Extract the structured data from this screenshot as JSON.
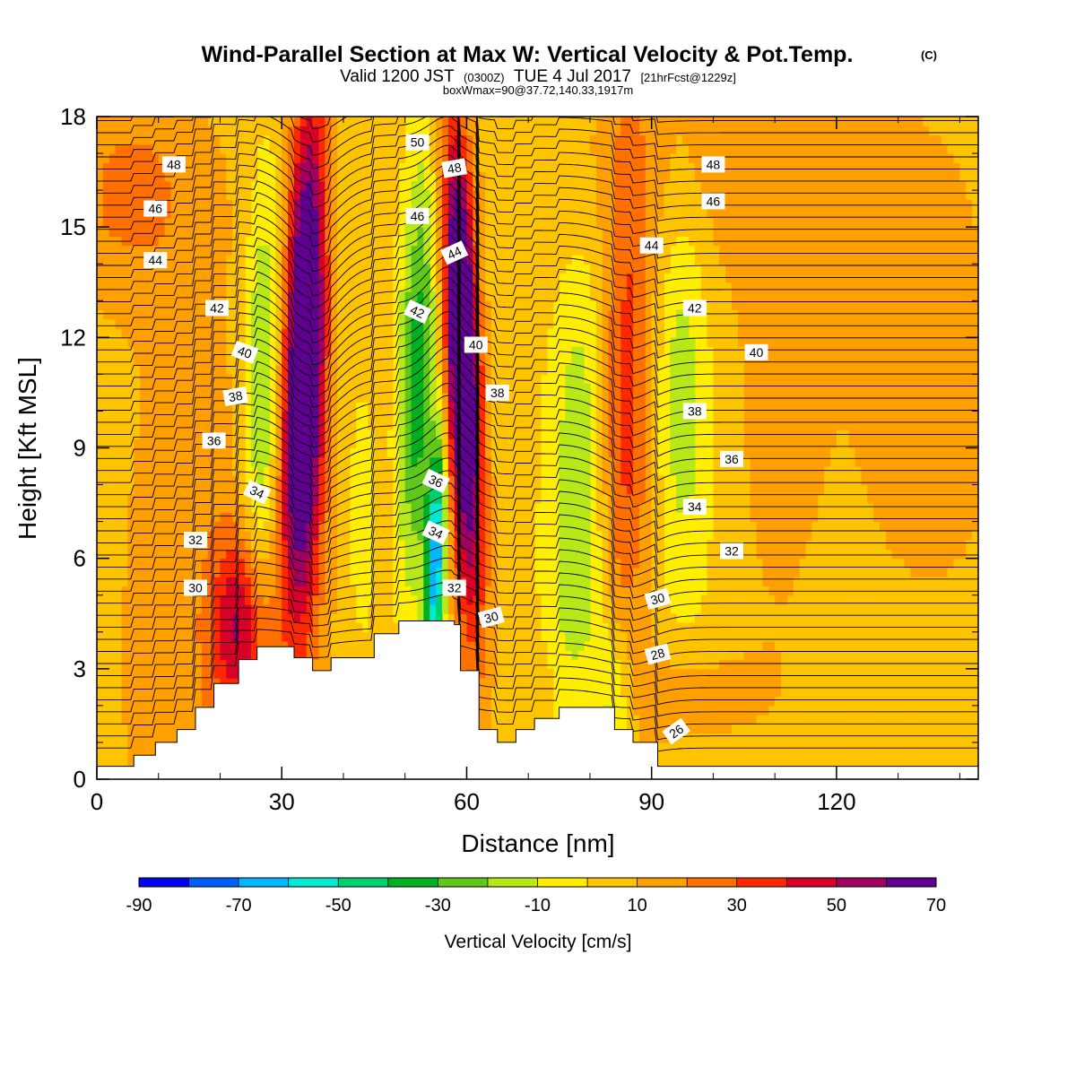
{
  "title": {
    "main": "Wind-Parallel Section at Max W: Vertical Velocity & Pot.Temp.",
    "copyright": "(C)",
    "valid_prefix": "Valid 1200 JST",
    "valid_z": "(0300Z)",
    "valid_date": "TUE 4 Jul 2017",
    "fcst": "[21hrFcst@1229z]",
    "box": "boxWmax=90@37.72,140.33,1917m"
  },
  "colors": {
    "scale": [
      "#0000ee",
      "#0060ff",
      "#00b8ff",
      "#00e8d0",
      "#00d070",
      "#00b020",
      "#60c818",
      "#b8e818",
      "#ffee00",
      "#ffc400",
      "#ffa000",
      "#ff7000",
      "#ff2800",
      "#d80028",
      "#a00060",
      "#600090"
    ]
  },
  "chart_data": {
    "type": "heatmap",
    "xlabel": "Distance [nm]",
    "ylabel": "Height [Kft MSL]",
    "xlim": [
      0,
      143
    ],
    "ylim": [
      0,
      18
    ],
    "xticks": [
      "0",
      "30",
      "60",
      "90",
      "120"
    ],
    "yticks": [
      "0",
      "3",
      "6",
      "9",
      "12",
      "15",
      "18"
    ],
    "colorbar": {
      "label": "Vertical Velocity [cm/s]",
      "bounds": [
        -90,
        -80,
        -70,
        -60,
        -50,
        -40,
        -30,
        -20,
        -10,
        0,
        10,
        20,
        30,
        40,
        50,
        60,
        70
      ],
      "tick_labels": [
        "-90",
        "-70",
        "-50",
        "-30",
        "-10",
        "10",
        "30",
        "50",
        "70"
      ]
    },
    "terrain": [
      [
        0,
        0.35
      ],
      [
        6,
        0.35
      ],
      [
        6,
        0.65
      ],
      [
        9.5,
        0.65
      ],
      [
        9.5,
        1.0
      ],
      [
        13,
        1.0
      ],
      [
        13,
        1.35
      ],
      [
        16,
        1.35
      ],
      [
        16,
        1.95
      ],
      [
        19,
        1.95
      ],
      [
        19,
        2.6
      ],
      [
        23,
        2.6
      ],
      [
        23,
        3.25
      ],
      [
        26,
        3.25
      ],
      [
        26,
        3.6
      ],
      [
        32,
        3.6
      ],
      [
        32,
        3.3
      ],
      [
        35,
        3.3
      ],
      [
        35,
        2.95
      ],
      [
        38,
        2.95
      ],
      [
        38,
        3.3
      ],
      [
        45,
        3.3
      ],
      [
        45,
        3.95
      ],
      [
        49,
        3.95
      ],
      [
        49,
        4.3
      ],
      [
        58,
        4.3
      ],
      [
        58,
        4.2
      ],
      [
        59,
        4.2
      ],
      [
        59,
        2.95
      ],
      [
        62,
        2.95
      ],
      [
        62,
        1.35
      ],
      [
        65,
        1.35
      ],
      [
        65,
        1.0
      ],
      [
        68,
        1.0
      ],
      [
        68,
        1.35
      ],
      [
        71,
        1.35
      ],
      [
        71,
        1.65
      ],
      [
        75,
        1.65
      ],
      [
        75,
        1.95
      ],
      [
        84,
        1.95
      ],
      [
        84,
        1.35
      ],
      [
        87,
        1.35
      ],
      [
        87,
        1.0
      ],
      [
        91,
        1.0
      ],
      [
        91,
        0.35
      ],
      [
        143,
        0.35
      ]
    ],
    "isentrope_labels": [
      {
        "t": "48",
        "x": 12.5,
        "y": 16.7,
        "r": 0
      },
      {
        "t": "46",
        "x": 9.5,
        "y": 15.5,
        "r": 0
      },
      {
        "t": "44",
        "x": 9.5,
        "y": 14.1,
        "r": 0
      },
      {
        "t": "42",
        "x": 19.5,
        "y": 12.8,
        "r": 0
      },
      {
        "t": "40",
        "x": 24,
        "y": 11.6,
        "r": 20
      },
      {
        "t": "38",
        "x": 22.5,
        "y": 10.4,
        "r": -10
      },
      {
        "t": "36",
        "x": 19,
        "y": 9.2,
        "r": 0
      },
      {
        "t": "34",
        "x": 26,
        "y": 7.8,
        "r": 25
      },
      {
        "t": "32",
        "x": 16,
        "y": 6.5,
        "r": 0
      },
      {
        "t": "30",
        "x": 16,
        "y": 5.2,
        "r": 0
      },
      {
        "t": "50",
        "x": 52,
        "y": 17.3,
        "r": 0
      },
      {
        "t": "46",
        "x": 52,
        "y": 15.3,
        "r": 0
      },
      {
        "t": "42",
        "x": 52,
        "y": 12.7,
        "r": 25
      },
      {
        "t": "36",
        "x": 55,
        "y": 8.1,
        "r": 25
      },
      {
        "t": "34",
        "x": 55,
        "y": 6.7,
        "r": 25
      },
      {
        "t": "32",
        "x": 58,
        "y": 5.2,
        "r": 0
      },
      {
        "t": "48",
        "x": 58,
        "y": 16.6,
        "r": -10
      },
      {
        "t": "44",
        "x": 58,
        "y": 14.3,
        "r": -25
      },
      {
        "t": "40",
        "x": 61.5,
        "y": 11.8,
        "r": 0
      },
      {
        "t": "38",
        "x": 65,
        "y": 10.5,
        "r": 0
      },
      {
        "t": "30",
        "x": 64,
        "y": 4.4,
        "r": -15
      },
      {
        "t": "48",
        "x": 100,
        "y": 16.7,
        "r": 0
      },
      {
        "t": "46",
        "x": 100,
        "y": 15.7,
        "r": 0
      },
      {
        "t": "44",
        "x": 90,
        "y": 14.5,
        "r": 0
      },
      {
        "t": "42",
        "x": 97,
        "y": 12.8,
        "r": 0
      },
      {
        "t": "40",
        "x": 107,
        "y": 11.6,
        "r": 0
      },
      {
        "t": "38",
        "x": 97,
        "y": 10.0,
        "r": 0
      },
      {
        "t": "36",
        "x": 103,
        "y": 8.7,
        "r": 0
      },
      {
        "t": "34",
        "x": 97,
        "y": 7.4,
        "r": 0
      },
      {
        "t": "32",
        "x": 103,
        "y": 6.2,
        "r": 0
      },
      {
        "t": "30",
        "x": 91,
        "y": 4.9,
        "r": -15
      },
      {
        "t": "28",
        "x": 91,
        "y": 3.4,
        "r": -15
      },
      {
        "t": "26",
        "x": 94,
        "y": 1.3,
        "r": -35
      }
    ]
  }
}
